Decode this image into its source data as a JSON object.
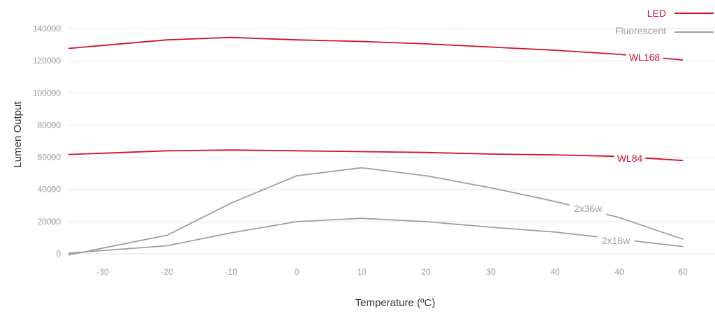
{
  "chart_data": {
    "type": "line",
    "title": "",
    "xlabel": "Temperature (ºC)",
    "ylabel": "Lumen Output",
    "x": [
      -30,
      -20,
      -10,
      0,
      10,
      20,
      30,
      40,
      40,
      60
    ],
    "xtick_labels": [
      "-30",
      "-20",
      "-10",
      "0",
      "10",
      "20",
      "30",
      "40",
      "40",
      "60"
    ],
    "yticks": [
      0,
      20000,
      40000,
      60000,
      80000,
      100000,
      120000,
      140000
    ],
    "ytick_labels": [
      "0",
      "20000",
      "40000",
      "60000",
      "80000",
      "100000",
      "120000",
      "140000"
    ],
    "ylim": [
      0,
      140000
    ],
    "grid": true,
    "legend": {
      "position": "top-right",
      "entries": [
        {
          "label": "LED",
          "color": "#d0102f"
        },
        {
          "label": "Fluorescent",
          "color": "#9e9e9e"
        }
      ]
    },
    "series": [
      {
        "name": "WL168",
        "group": "LED",
        "color": "#d0102f",
        "values": [
          129500,
          133000,
          134500,
          133000,
          132000,
          130500,
          128500,
          126500,
          124000,
          120500
        ]
      },
      {
        "name": "WL84",
        "group": "LED",
        "color": "#d0102f",
        "values": [
          62500,
          64000,
          64500,
          64000,
          63500,
          63000,
          62000,
          61500,
          60500,
          58000
        ]
      },
      {
        "name": "2x36w",
        "group": "Fluorescent",
        "color": "#9e9e9e",
        "values": [
          3500,
          11500,
          31500,
          48500,
          53500,
          48500,
          41000,
          32500,
          22500,
          9000
        ]
      },
      {
        "name": "2x18w",
        "group": "Fluorescent",
        "color": "#9e9e9e",
        "values": [
          2000,
          5000,
          13000,
          20000,
          22000,
          20000,
          16500,
          13500,
          9000,
          4500
        ]
      }
    ]
  }
}
